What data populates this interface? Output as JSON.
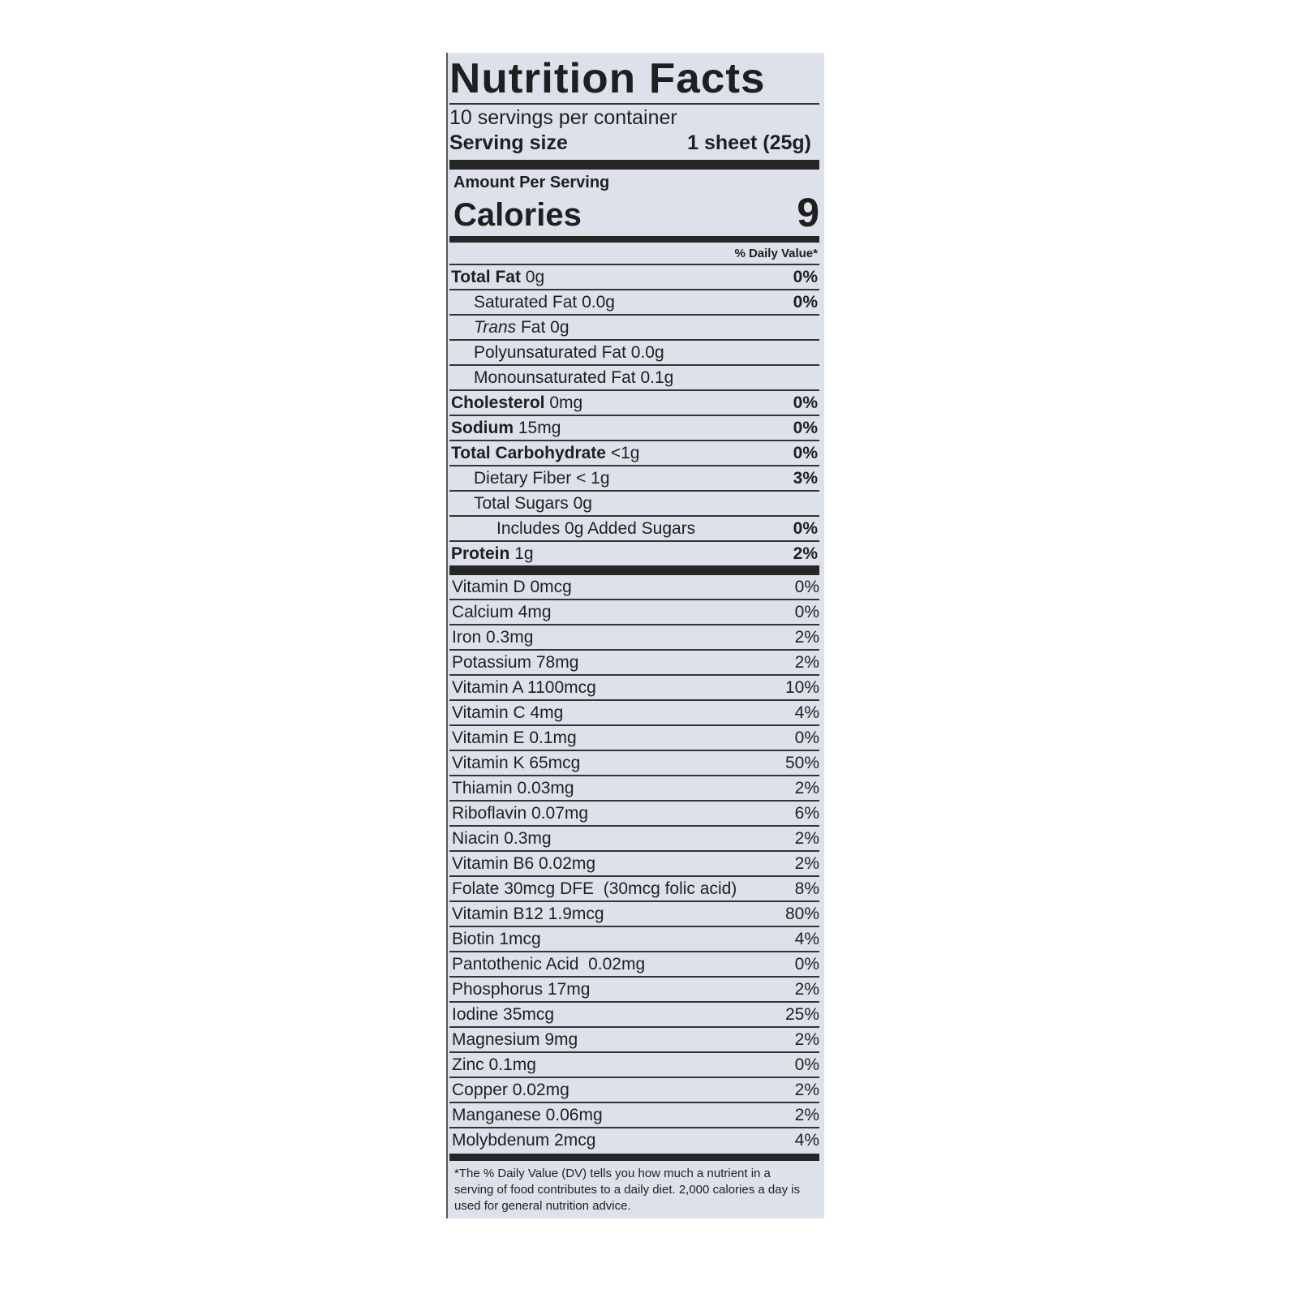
{
  "title": "Nutrition Facts",
  "servings": "10 servings per container",
  "serving_size_label": "Serving size",
  "serving_size_value": "1 sheet (25g)",
  "amount_per_serving": "Amount Per Serving",
  "calories_label": "Calories",
  "calories_value": "9",
  "dv_header": "% Daily Value*",
  "nutrients": [
    {
      "name": "Total Fat",
      "amount": "0g",
      "dv": "0%",
      "indent": 0,
      "bold": true
    },
    {
      "name": "Saturated Fat",
      "amount": "0.0g",
      "dv": "0%",
      "indent": 1,
      "bold": false
    },
    {
      "name": "Trans",
      "name_suffix": "Fat",
      "amount": "0g",
      "dv": "",
      "indent": 1,
      "bold": false,
      "italic": true
    },
    {
      "name": "Polyunsaturated Fat",
      "amount": "0.0g",
      "dv": "",
      "indent": 1,
      "bold": false
    },
    {
      "name": "Monounsaturated Fat",
      "amount": "0.1g",
      "dv": "",
      "indent": 1,
      "bold": false
    },
    {
      "name": "Cholesterol",
      "amount": "0mg",
      "dv": "0%",
      "indent": 0,
      "bold": true
    },
    {
      "name": "Sodium",
      "amount": "15mg",
      "dv": "0%",
      "indent": 0,
      "bold": true
    },
    {
      "name": "Total Carbohydrate",
      "amount": "<1g",
      "dv": "0%",
      "indent": 0,
      "bold": true
    },
    {
      "name": "Dietary Fiber",
      "amount": "< 1g",
      "dv": "3%",
      "indent": 1,
      "bold": false
    },
    {
      "name": "Total Sugars",
      "amount": "0g",
      "dv": "",
      "indent": 1,
      "bold": false
    },
    {
      "name": "Includes 0g Added Sugars",
      "amount": "",
      "dv": "0%",
      "indent": 2,
      "bold": false
    },
    {
      "name": "Protein",
      "amount": "1g",
      "dv": "2%",
      "indent": 0,
      "bold": true
    }
  ],
  "vitamins": [
    {
      "name": "Vitamin D 0mcg",
      "dv": "0%"
    },
    {
      "name": "Calcium 4mg",
      "dv": "0%"
    },
    {
      "name": "Iron 0.3mg",
      "dv": "2%"
    },
    {
      "name": "Potassium 78mg",
      "dv": "2%"
    },
    {
      "name": "Vitamin A 1100mcg",
      "dv": "10%"
    },
    {
      "name": "Vitamin C 4mg",
      "dv": "4%"
    },
    {
      "name": "Vitamin E 0.1mg",
      "dv": "0%"
    },
    {
      "name": "Vitamin K 65mcg",
      "dv": "50%"
    },
    {
      "name": "Thiamin 0.03mg",
      "dv": "2%"
    },
    {
      "name": "Riboflavin 0.07mg",
      "dv": "6%"
    },
    {
      "name": "Niacin 0.3mg",
      "dv": "2%"
    },
    {
      "name": "Vitamin B6 0.02mg",
      "dv": "2%"
    },
    {
      "name": "Folate 30mcg DFE  (30mcg folic acid)",
      "dv": "8%"
    },
    {
      "name": "Vitamin B12 1.9mcg",
      "dv": "80%"
    },
    {
      "name": "Biotin 1mcg",
      "dv": "4%"
    },
    {
      "name": "Pantothenic Acid  0.02mg",
      "dv": "0%"
    },
    {
      "name": "Phosphorus 17mg",
      "dv": "2%"
    },
    {
      "name": "Iodine 35mcg",
      "dv": "25%"
    },
    {
      "name": "Magnesium 9mg",
      "dv": "2%"
    },
    {
      "name": "Zinc 0.1mg",
      "dv": "0%"
    },
    {
      "name": "Copper 0.02mg",
      "dv": "2%"
    },
    {
      "name": "Manganese 0.06mg",
      "dv": "2%"
    },
    {
      "name": "Molybdenum 2mcg",
      "dv": "4%"
    }
  ],
  "footnote": "*The % Daily Value (DV) tells you how much a nutrient in a serving of food contributes to a daily diet. 2,000 calories a day is used for general nutrition advice."
}
